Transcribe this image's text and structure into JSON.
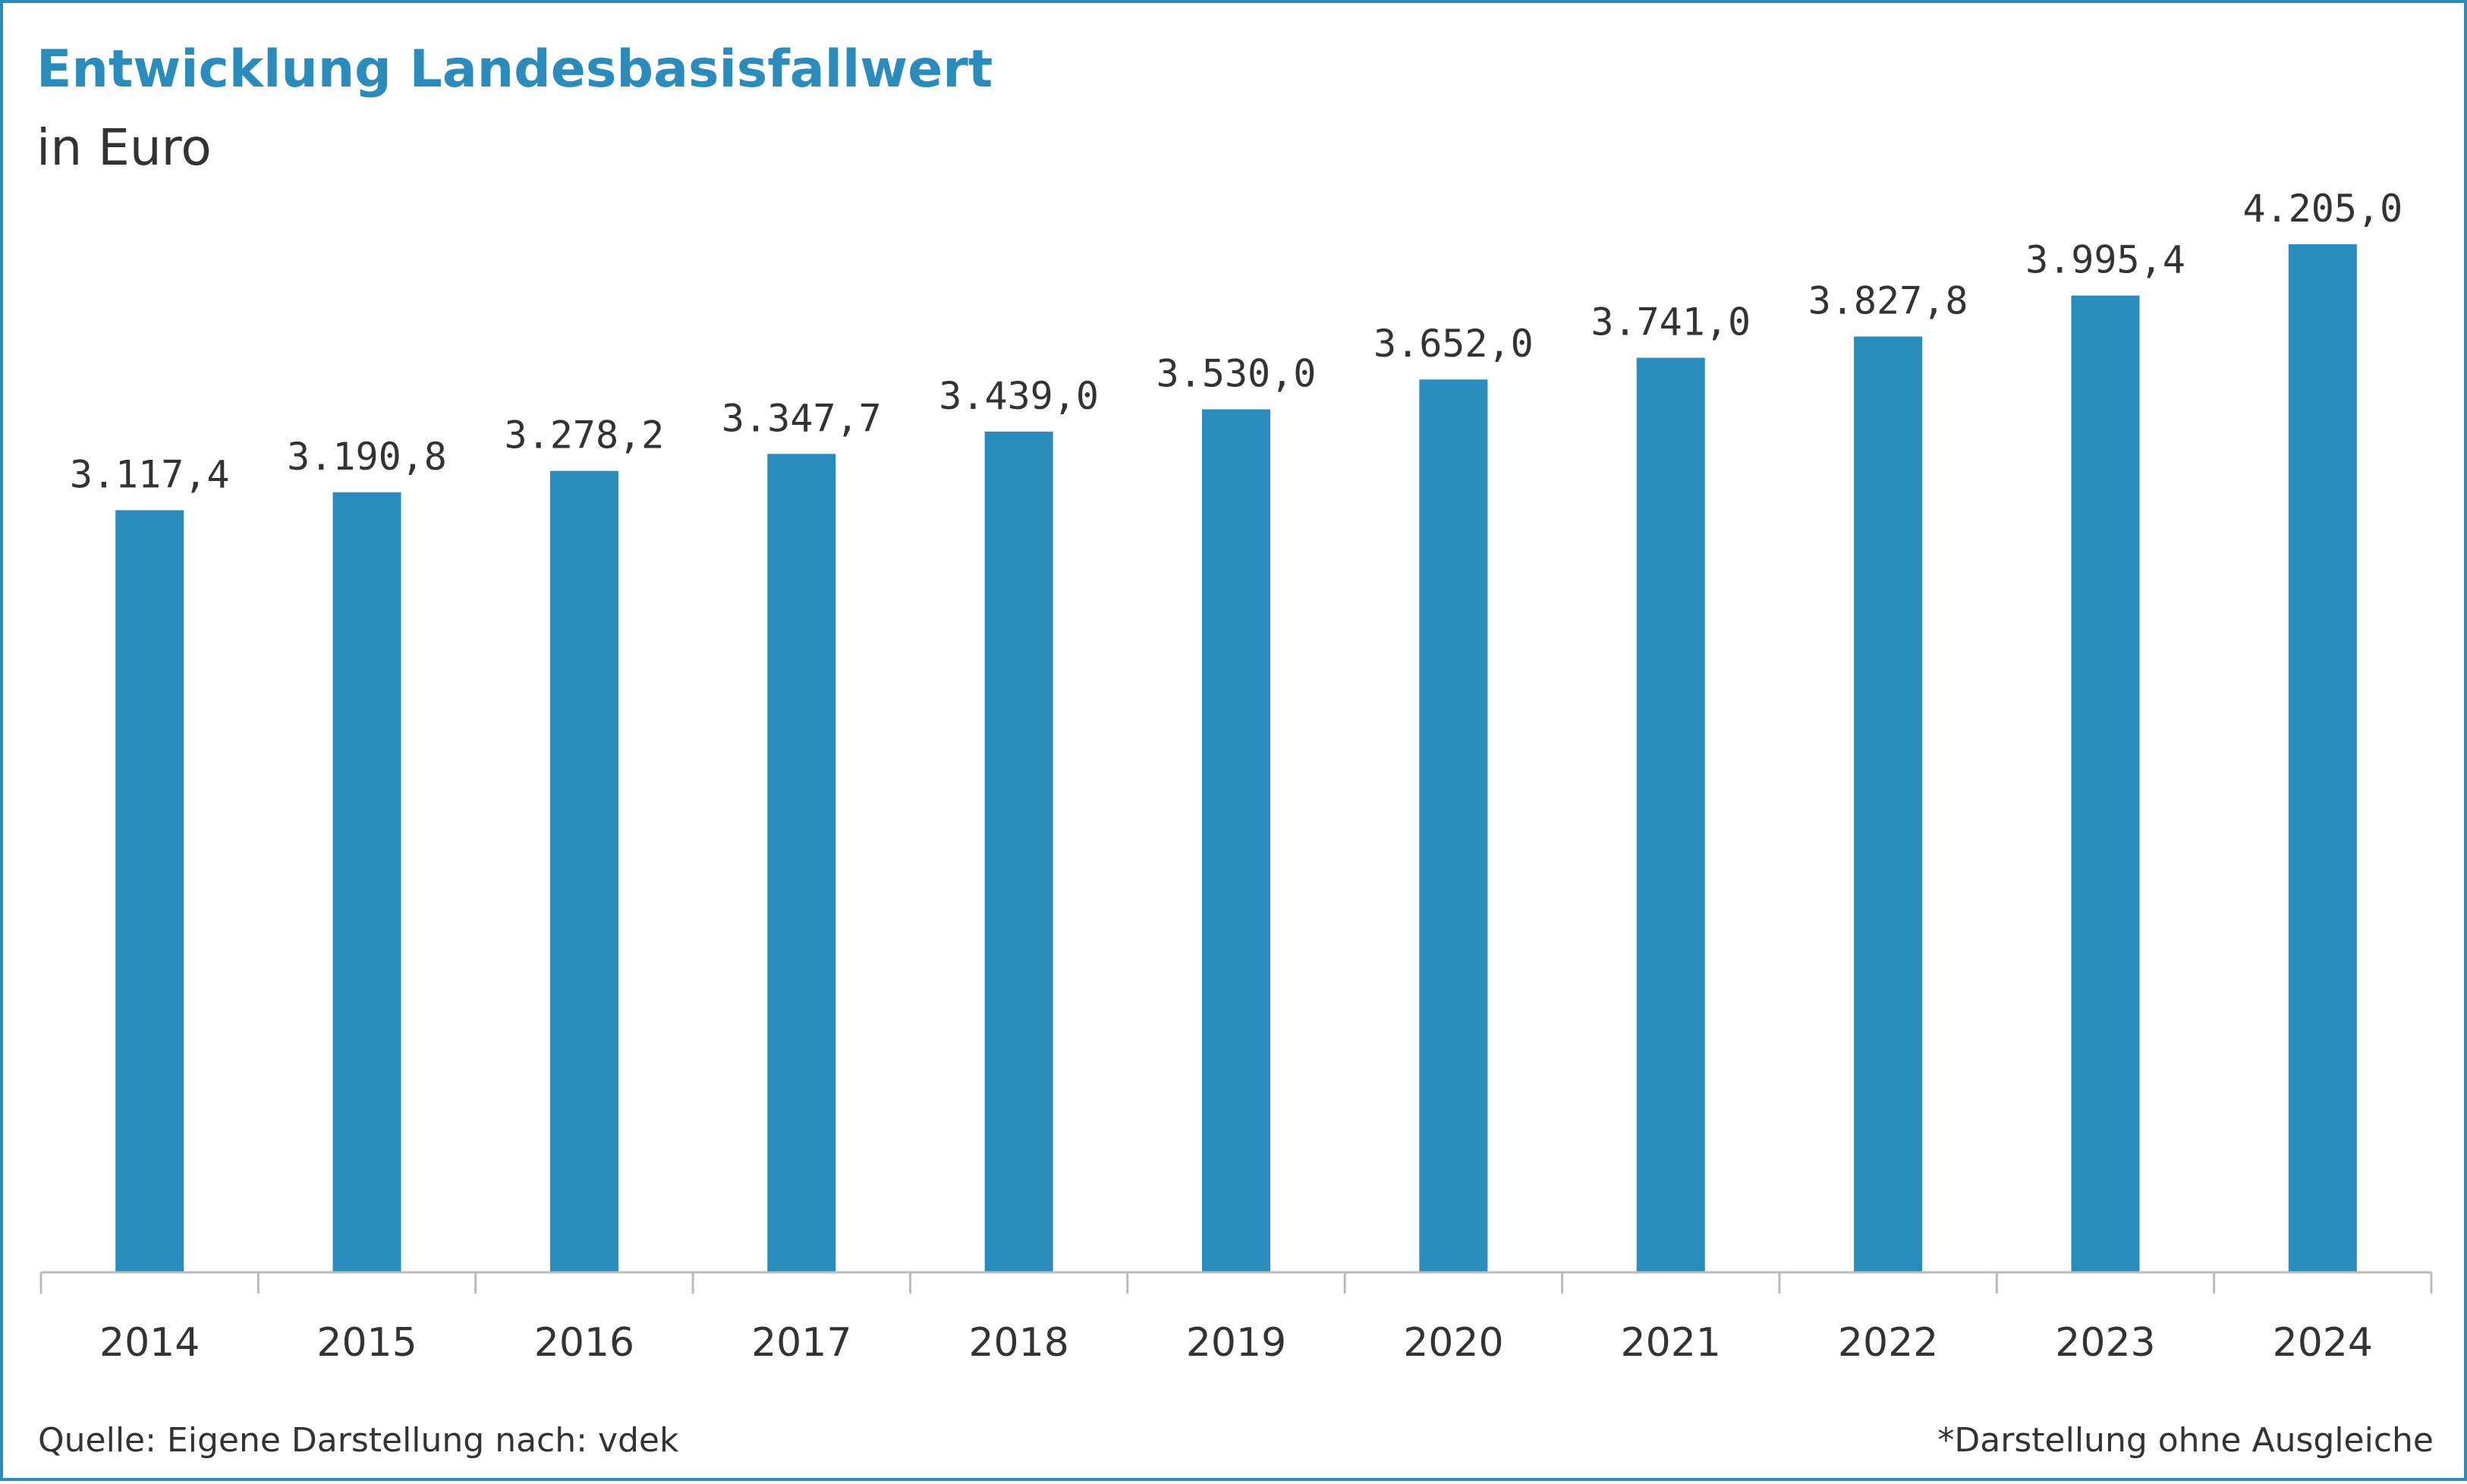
{
  "chart_data": {
    "type": "bar",
    "title": "Entwicklung Landesbasisfallwert",
    "subtitle": "in Euro",
    "categories": [
      "2014",
      "2015",
      "2016",
      "2017",
      "2018",
      "2019",
      "2020",
      "2021",
      "2022",
      "2023",
      "2024"
    ],
    "values": [
      3117.4,
      3190.8,
      3278.2,
      3347.7,
      3439.0,
      3530.0,
      3652.0,
      3741.0,
      3827.8,
      3995.4,
      4205.0
    ],
    "value_labels": [
      "3.117,4",
      "3.190,8",
      "3.278,2",
      "3.347,7",
      "3.439,0",
      "3.530,0",
      "3.652,0",
      "3.741,0",
      "3.827,8",
      "3.995,4",
      "4.205,0"
    ],
    "ylim": [
      0,
      4205.0
    ],
    "bar_color": "#2a8bbd",
    "grid": false,
    "legend": "none"
  },
  "footer": {
    "source": "Quelle: Eigene Darstellung nach: vdek",
    "note": "*Darstellung ohne Ausgleiche"
  },
  "colors": {
    "accent": "#2a8bbd",
    "text": "#333333",
    "axis": "#bbbbbb"
  }
}
